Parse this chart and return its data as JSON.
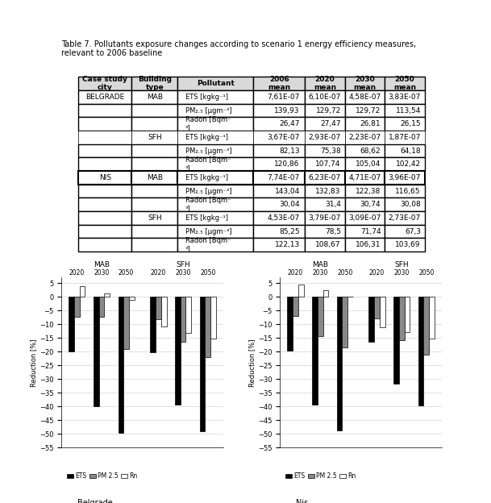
{
  "table": {
    "col_headers": [
      "Case study\ncity",
      "Building type",
      "Pollutant",
      "2006\nmean",
      "2020\nmean",
      "2030\nmean",
      "2050\nmean"
    ],
    "rows": [
      [
        "BELGRADE",
        "MAB",
        "ETS [kgkg⁻¹]",
        "7,61E-07",
        "6,10E-07",
        "4,58E-07",
        "3,83E-07"
      ],
      [
        "",
        "",
        "PM₂.₅ [μgm⁻³]",
        "139,93",
        "129,72",
        "129,72",
        "113,54"
      ],
      [
        "",
        "",
        "Radon [Bqm⁻\n³]",
        "26,47",
        "27,47",
        "26,81",
        "26,15"
      ],
      [
        "",
        "SFH",
        "ETS [kgkg⁻¹]",
        "3,67E-07",
        "2,93E-07",
        "2,23E-07",
        "1,87E-07"
      ],
      [
        "",
        "",
        "PM₂.₅ [μgm⁻³]",
        "82,13",
        "75,38",
        "68,62",
        "64,18"
      ],
      [
        "",
        "",
        "Radon [Bqm⁻\n³]",
        "120,86",
        "107,74",
        "105,04",
        "102,42"
      ],
      [
        "NIS",
        "MAB",
        "ETS [kgkg⁻¹]",
        "7,74E-07",
        "6,23E-07",
        "4,71E-07",
        "3,96E-07"
      ],
      [
        "",
        "",
        "PM₂.₅ [μgm⁻³]",
        "143,04",
        "132,83",
        "122,38",
        "116,65"
      ],
      [
        "",
        "",
        "Radon [Bqm⁻\n³]",
        "30,04",
        "31,4",
        "30,74",
        "30,08"
      ],
      [
        "",
        "SFH",
        "ETS [kgkg⁻¹]",
        "4,53E-07",
        "3,79E-07",
        "3,09E-07",
        "2,73E-07"
      ],
      [
        "",
        "",
        "PM₂.₅ [μgm⁻³]",
        "85,25",
        "78,5",
        "71,74",
        "67,3"
      ],
      [
        "",
        "",
        "Radon [Bqm⁻\n³]",
        "122,13",
        "108,67",
        "106,31",
        "103,69"
      ]
    ]
  },
  "belgrade": {
    "mab": {
      "ETS": [
        -19.8,
        -39.8,
        -49.7
      ],
      "PM25": [
        -7.3,
        -7.3,
        -18.9
      ],
      "Rn": [
        3.8,
        1.3,
        -1.2
      ]
    },
    "sfh": {
      "ETS": [
        -20.2,
        -39.2,
        -49.1
      ],
      "PM25": [
        -8.2,
        -16.5,
        -21.9
      ],
      "Rn": [
        -10.9,
        -13.1,
        -15.2
      ]
    }
  },
  "nis": {
    "mab": {
      "ETS": [
        -19.5,
        -39.2,
        -48.8
      ],
      "PM25": [
        -7.1,
        -14.4,
        -18.4
      ],
      "Rn": [
        4.5,
        2.3,
        0.1
      ]
    },
    "sfh": {
      "ETS": [
        -16.3,
        -31.8,
        -39.7
      ],
      "PM25": [
        -7.9,
        -15.8,
        -21.1
      ],
      "Rn": [
        -11.0,
        -13.0,
        -15.1
      ]
    }
  },
  "years": [
    "2020",
    "2030",
    "2050"
  ],
  "bar_colors": {
    "ETS": "#000000",
    "PM25": "#888888",
    "Rn": "#ffffff"
  },
  "ylim": [
    -55,
    7
  ],
  "yticks": [
    5,
    0,
    -5,
    -10,
    -15,
    -20,
    -25,
    -30,
    -35,
    -40,
    -45,
    -50,
    -55
  ]
}
